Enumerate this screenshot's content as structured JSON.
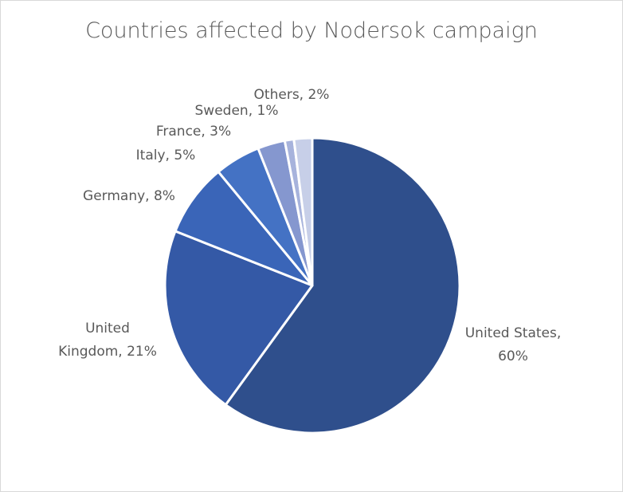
{
  "chart_data": {
    "type": "pie",
    "title": "Countries affected by Nodersok campaign",
    "slices": [
      {
        "name": "United States",
        "value": 60,
        "label_lines": [
          "United States,",
          "60%"
        ],
        "color": "#2f4f8c"
      },
      {
        "name": "United Kingdom",
        "value": 21,
        "label_lines": [
          "United",
          "Kingdom, 21%"
        ],
        "color": "#3459a6"
      },
      {
        "name": "Germany",
        "value": 8,
        "label_lines": [
          "Germany, 8%"
        ],
        "color": "#3a65b8"
      },
      {
        "name": "Italy",
        "value": 5,
        "label_lines": [
          "Italy, 5%"
        ],
        "color": "#4472c4"
      },
      {
        "name": "France",
        "value": 3,
        "label_lines": [
          "France, 3%"
        ],
        "color": "#8597cf"
      },
      {
        "name": "Sweden",
        "value": 1,
        "label_lines": [
          "Sweden, 1%"
        ],
        "color": "#a7b3dc"
      },
      {
        "name": "Others",
        "value": 2,
        "label_lines": [
          "Others, 2%"
        ],
        "color": "#c7cfe8"
      }
    ]
  }
}
